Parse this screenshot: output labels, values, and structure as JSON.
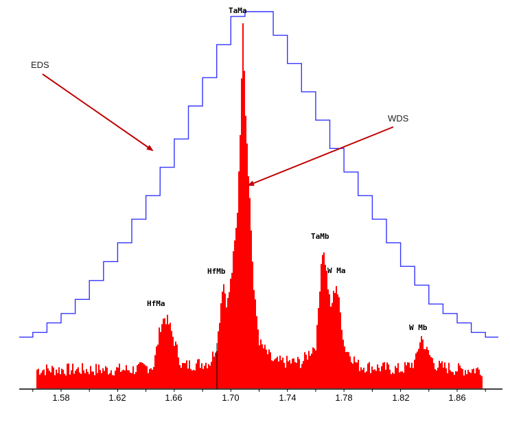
{
  "chart_data": {
    "type": "area",
    "title": "",
    "xlabel": "",
    "ylabel": "",
    "x_ticks": [
      "1.58",
      "1.62",
      "1.66",
      "1.70",
      "1.74",
      "1.78",
      "1.82",
      "1.86"
    ],
    "xlim": [
      1.565,
      1.89
    ],
    "grid": false,
    "legend": null,
    "series": [
      {
        "name": "EDS",
        "style": "step-line",
        "color": "#3333ff",
        "x": [
          1.555,
          1.565,
          1.575,
          1.585,
          1.595,
          1.605,
          1.615,
          1.625,
          1.635,
          1.645,
          1.655,
          1.665,
          1.675,
          1.685,
          1.695,
          1.705,
          1.715,
          1.725,
          1.735,
          1.745,
          1.755,
          1.765,
          1.775,
          1.785,
          1.795,
          1.805,
          1.815,
          1.825,
          1.835,
          1.845,
          1.855,
          1.865,
          1.875,
          1.885
        ],
        "y": [
          2,
          3,
          5,
          7,
          10,
          14,
          18,
          22,
          27,
          32,
          38,
          44,
          51,
          57,
          64,
          70,
          71,
          71,
          66,
          60,
          54,
          48,
          42,
          37,
          32,
          27,
          22,
          17,
          13,
          9,
          7,
          5,
          3,
          2
        ]
      },
      {
        "name": "WDS",
        "style": "filled-histogram",
        "color": "#ff0000",
        "x": [
          1.57,
          1.6,
          1.63,
          1.645,
          1.65,
          1.653,
          1.656,
          1.665,
          1.685,
          1.69,
          1.694,
          1.697,
          1.7,
          1.704,
          1.707,
          1.708,
          1.71,
          1.713,
          1.716,
          1.72,
          1.73,
          1.75,
          1.76,
          1.764,
          1.766,
          1.77,
          1.774,
          1.776,
          1.78,
          1.79,
          1.82,
          1.83,
          1.834,
          1.838,
          1.845,
          1.86,
          1.88
        ],
        "y": [
          5,
          5,
          5,
          6,
          17,
          19,
          17,
          6,
          7,
          12,
          29,
          22,
          30,
          45,
          78,
          100,
          74,
          50,
          25,
          12,
          7,
          7,
          12,
          37,
          35,
          21,
          28,
          23,
          11,
          6,
          5,
          7,
          14,
          10,
          6,
          5,
          5
        ]
      }
    ],
    "peak_labels": [
      {
        "text": "TaMa",
        "x": 1.708
      },
      {
        "text": "HfMa",
        "x": 1.652
      },
      {
        "text": "HfMb",
        "x": 1.697
      },
      {
        "text": "TaMb",
        "x": 1.765
      },
      {
        "text": "W Ma",
        "x": 1.775
      },
      {
        "text": "W Mb",
        "x": 1.834
      }
    ],
    "annotations": [
      {
        "text": "EDS",
        "arrow": "points to blue step curve"
      },
      {
        "text": "WDS",
        "arrow": "points to red WDS peak"
      }
    ]
  },
  "labels": {
    "eds": "EDS",
    "wds": "WDS",
    "tama": "TaMa",
    "hfma": "HfMa",
    "hfmb": "HfMb",
    "tamb": "TaMb",
    "wma": "W Ma",
    "wmb": "W Mb"
  },
  "axis": {
    "ticks": [
      "1.58",
      "1.62",
      "1.66",
      "1.70",
      "1.74",
      "1.78",
      "1.82",
      "1.86"
    ]
  },
  "colors": {
    "eds": "#3333ff",
    "wds": "#ff0000",
    "arrow": "#c00000",
    "axis": "#000000"
  }
}
